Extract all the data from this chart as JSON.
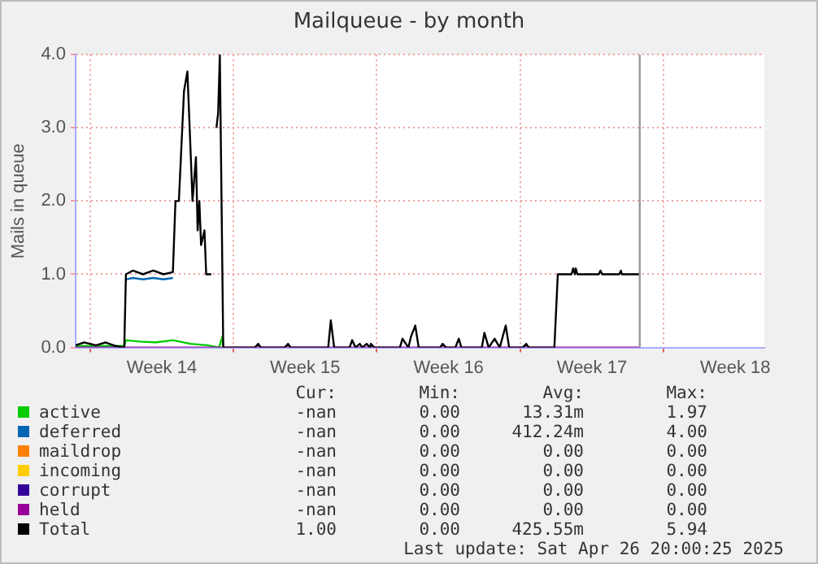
{
  "chart_data": {
    "type": "line",
    "title": "Mailqueue - by month",
    "ylabel": "Mails in queue",
    "xlim": [
      "2025-03-30T07:00",
      "2025-05-02T22:00"
    ],
    "ylim": [
      0,
      4
    ],
    "xticks": [
      {
        "value": "2025-03-31T00:00",
        "label": null
      },
      {
        "value": "2025-04-03T12:00",
        "label": "Week 14"
      },
      {
        "value": "2025-04-07T00:00",
        "label": null
      },
      {
        "value": "2025-04-10T12:00",
        "label": "Week 15"
      },
      {
        "value": "2025-04-14T00:00",
        "label": null
      },
      {
        "value": "2025-04-17T12:00",
        "label": "Week 16"
      },
      {
        "value": "2025-04-21T00:00",
        "label": null
      },
      {
        "value": "2025-04-24T12:00",
        "label": "Week 17"
      },
      {
        "value": "2025-04-28T00:00",
        "label": null
      },
      {
        "value": "2025-05-01T12:00",
        "label": "Week 18"
      }
    ],
    "yticks": [
      {
        "value": 0,
        "label": "0.0"
      },
      {
        "value": 1,
        "label": "1.0"
      },
      {
        "value": 2,
        "label": "2.0"
      },
      {
        "value": 3,
        "label": "3.0"
      },
      {
        "value": 4,
        "label": "4.0"
      }
    ],
    "grid": true,
    "legend": "bottom",
    "marker": "none",
    "line_style": "solid",
    "ref_lines": [
      {
        "axis": "x",
        "value": "2025-04-26T20:00",
        "color": "#999999"
      }
    ],
    "series": [
      {
        "name": "active",
        "color": "#00cc00",
        "x": [
          "2025-03-30T07:00",
          "2025-04-01T10:00",
          "2025-04-01T16:00",
          "2025-04-01T18:00",
          "2025-04-02T11:00",
          "2025-04-03T05:00",
          "2025-04-04T01:00",
          "2025-04-04T22:00",
          "2025-04-05T18:00",
          "2025-04-06T07:00",
          "2025-04-06T11:00",
          "2025-04-06T12:00"
        ],
        "values": [
          0.02,
          0.02,
          0.02,
          0.1,
          0.08,
          0.07,
          0.1,
          0.05,
          0.03,
          0.0,
          0.15,
          0.0
        ]
      },
      {
        "name": "deferred",
        "color": "#0066b3",
        "x": [
          "2025-04-01T18:00",
          "2025-04-02T02:00",
          "2025-04-02T14:00",
          "2025-04-03T02:00",
          "2025-04-03T14:00",
          "2025-04-04T01:00"
        ],
        "values": [
          0.93,
          0.95,
          0.93,
          0.95,
          0.93,
          0.95
        ]
      },
      {
        "name": "maildrop",
        "color": "#ff8000"
      },
      {
        "name": "incoming",
        "color": "#ffcc00"
      },
      {
        "name": "corrupt",
        "color": "#330099"
      },
      {
        "name": "held",
        "color": "#990099",
        "x": [
          "2025-03-30T07:00",
          "2025-04-26T20:00"
        ],
        "values": [
          0,
          0
        ]
      },
      {
        "name": "Total",
        "color": "#000000",
        "x": [
          "2025-03-30T07:00",
          "2025-03-30T17:00",
          "2025-03-31T07:00",
          "2025-03-31T18:00",
          "2025-04-01T06:00",
          "2025-04-01T16:00",
          "2025-04-01T18:00",
          "2025-04-02T02:00",
          "2025-04-02T14:00",
          "2025-04-03T02:00",
          "2025-04-03T14:00",
          "2025-04-04T01:00",
          "2025-04-04T04:00",
          "2025-04-04T08:00",
          "2025-04-04T14:00",
          "2025-04-04T18:00",
          "2025-04-04T22:00",
          "2025-04-05T00:00",
          "2025-04-05T04:00",
          "2025-04-05T06:00",
          "2025-04-05T08:00",
          "2025-04-05T10:00",
          "2025-04-05T14:00",
          "2025-04-05T16:00",
          "2025-04-05T22:00",
          "2025-04-06T00:00",
          "2025-04-06T04:00",
          "2025-04-06T06:00",
          "2025-04-06T08:00",
          "2025-04-06T12:00",
          "2025-04-06T14:00",
          "2025-04-08T01:00",
          "2025-04-08T05:00",
          "2025-04-08T08:00",
          "2025-04-09T12:00",
          "2025-04-09T16:00",
          "2025-04-09T19:00",
          "2025-04-11T15:00",
          "2025-04-11T18:00",
          "2025-04-11T22:00",
          "2025-04-12T16:00",
          "2025-04-12T19:00",
          "2025-04-12T23:00",
          "2025-04-13T04:00",
          "2025-04-13T07:00",
          "2025-04-13T12:00",
          "2025-04-13T16:00",
          "2025-04-13T17:00",
          "2025-04-13T21:00",
          "2025-04-15T03:00",
          "2025-04-15T06:00",
          "2025-04-15T13:00",
          "2025-04-15T16:00",
          "2025-04-15T21:00",
          "2025-04-16T01:00",
          "2025-04-17T02:00",
          "2025-04-17T05:00",
          "2025-04-17T09:00",
          "2025-04-17T20:00",
          "2025-04-18T00:00",
          "2025-04-18T03:00",
          "2025-04-19T03:00",
          "2025-04-19T06:00",
          "2025-04-19T11:00",
          "2025-04-19T18:00",
          "2025-04-20T00:00",
          "2025-04-20T07:00",
          "2025-04-20T11:00",
          "2025-04-21T03:00",
          "2025-04-21T07:00",
          "2025-04-21T10:00",
          "2025-04-22T16:00",
          "2025-04-22T20:00",
          "2025-04-23T12:00",
          "2025-04-23T14:00",
          "2025-04-23T16:00",
          "2025-04-23T17:00",
          "2025-04-23T19:00",
          "2025-04-24T20:00",
          "2025-04-24T22:00",
          "2025-04-25T00:00",
          "2025-04-25T20:00",
          "2025-04-25T22:00",
          "2025-04-25T23:00",
          "2025-04-26T20:00"
        ],
        "values": [
          0.03,
          0.07,
          0.03,
          0.07,
          0.02,
          0,
          1.0,
          1.05,
          1.0,
          1.05,
          1.0,
          1.03,
          2.0,
          2.0,
          3.5,
          3.77,
          2.6,
          2.0,
          2.6,
          1.6,
          2.0,
          1.4,
          1.6,
          1.0,
          1.0,
          null,
          3.0,
          3.2,
          4.0,
          0,
          0,
          0,
          0.05,
          0,
          0,
          0.05,
          0,
          0,
          0.37,
          0,
          0,
          0.1,
          0,
          0.05,
          0,
          0.05,
          0,
          0.05,
          0,
          0,
          0.12,
          0,
          0.15,
          0.3,
          0,
          0,
          0.05,
          0,
          0,
          0.12,
          0,
          0,
          0.2,
          0,
          0.12,
          0,
          0.3,
          0,
          0,
          0.05,
          0,
          0,
          1.0,
          1.0,
          1.08,
          1.0,
          1.08,
          1.0,
          1.0,
          1.05,
          1.0,
          1.0,
          1.05,
          1.0,
          1.0
        ]
      }
    ],
    "annotations": [
      "Cur: Min: Avg: Max:",
      "-nan 0.00 13.31m 1.97",
      "-nan 0.00 412.24m 4.00",
      "-nan 0.00 0.00 0.00",
      "-nan 0.00 0.00 0.00",
      "-nan 0.00 0.00 0.00",
      "-nan 0.00 0.00 0.00",
      "1.00 0.00 425.55m 5.94",
      "Last update: Sat Apr 26 20:00:25 2025"
    ]
  }
}
